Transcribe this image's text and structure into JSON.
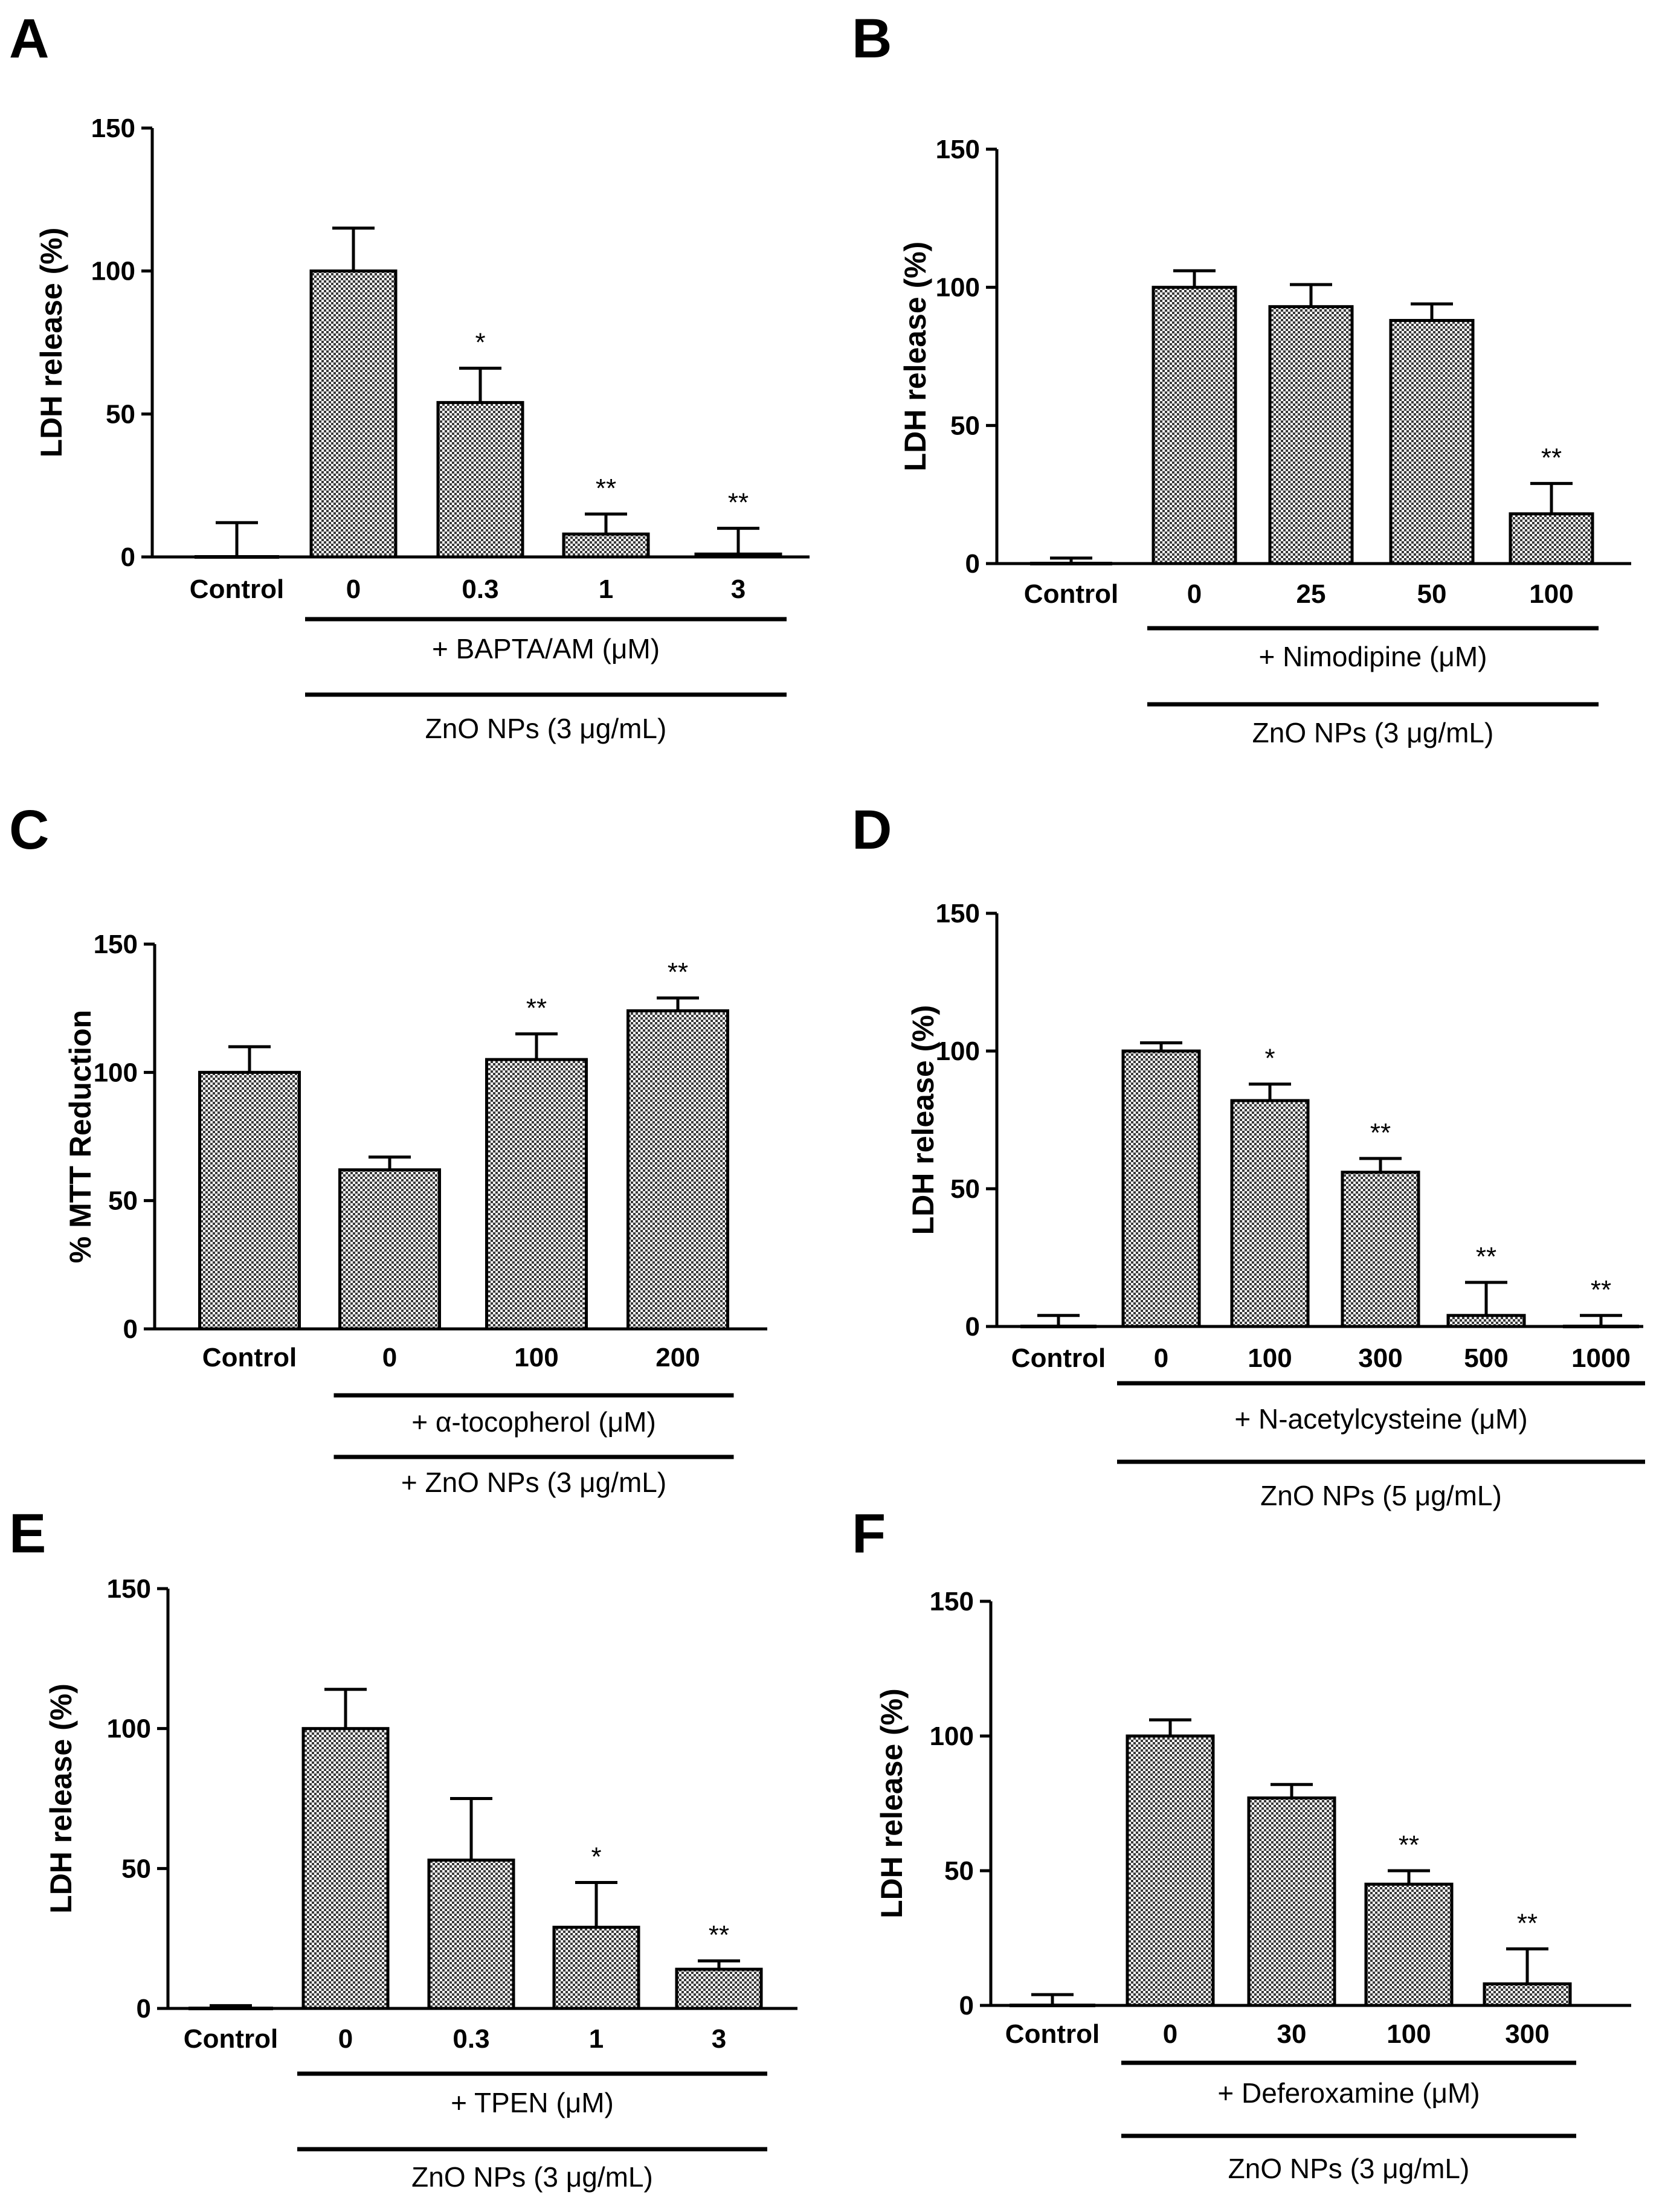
{
  "chart_data": [
    {
      "panel": "A",
      "type": "bar",
      "ylabel": "LDH release (%)",
      "ylim": [
        0,
        150
      ],
      "yticks": [
        0,
        50,
        100,
        150
      ],
      "categories": [
        "Control",
        "0",
        "0.3",
        "1",
        "3"
      ],
      "values": [
        0,
        100,
        54,
        8,
        1
      ],
      "errors": [
        12,
        15,
        12,
        7,
        9
      ],
      "significance": [
        "",
        "",
        "*",
        "**",
        "**"
      ],
      "brackets": [
        {
          "label": "+ BAPTA/AM (μM)",
          "from": 1,
          "to": 4
        },
        {
          "label": "ZnO NPs (3 μg/mL)",
          "from": 1,
          "to": 4
        }
      ]
    },
    {
      "panel": "B",
      "type": "bar",
      "ylabel": "LDH release (%)",
      "ylim": [
        0,
        150
      ],
      "yticks": [
        0,
        50,
        100,
        150
      ],
      "categories": [
        "Control",
        "0",
        "25",
        "50",
        "100"
      ],
      "values": [
        0,
        100,
        93,
        88,
        18
      ],
      "errors": [
        2,
        6,
        8,
        6,
        11
      ],
      "significance": [
        "",
        "",
        "",
        "",
        "**"
      ],
      "brackets": [
        {
          "label": "+ Nimodipine (μM)",
          "from": 1,
          "to": 4
        },
        {
          "label": "ZnO NPs (3 μg/mL)",
          "from": 1,
          "to": 4
        }
      ]
    },
    {
      "panel": "C",
      "type": "bar",
      "ylabel": "% MTT Reduction",
      "ylim": [
        0,
        150
      ],
      "yticks": [
        0,
        50,
        100,
        150
      ],
      "categories": [
        "Control",
        "0",
        "100",
        "200"
      ],
      "values": [
        100,
        62,
        105,
        124
      ],
      "errors": [
        10,
        5,
        10,
        5
      ],
      "significance": [
        "",
        "",
        "**",
        "**"
      ],
      "brackets": [
        {
          "label": "+ α-tocopherol (μM)",
          "from": 1,
          "to": 3
        },
        {
          "label": "+ ZnO NPs (3 μg/mL)",
          "from": 1,
          "to": 3
        }
      ]
    },
    {
      "panel": "D",
      "type": "bar",
      "ylabel": "LDH release (%)",
      "ylim": [
        0,
        150
      ],
      "yticks": [
        0,
        50,
        100,
        150
      ],
      "categories": [
        "Control",
        "0",
        "100",
        "300",
        "500",
        "1000"
      ],
      "values": [
        0,
        100,
        82,
        56,
        4,
        0
      ],
      "errors": [
        4,
        3,
        6,
        5,
        12,
        4
      ],
      "significance": [
        "",
        "",
        "*",
        "**",
        "**",
        "**"
      ],
      "brackets": [
        {
          "label": "+ N-acetylcysteine (μM)",
          "from": 1,
          "to": 5
        },
        {
          "label": "ZnO NPs (5 μg/mL)",
          "from": 1,
          "to": 5
        }
      ]
    },
    {
      "panel": "E",
      "type": "bar",
      "ylabel": "LDH release (%)",
      "ylim": [
        0,
        150
      ],
      "yticks": [
        0,
        50,
        100,
        150
      ],
      "categories": [
        "Control",
        "0",
        "0.3",
        "1",
        "3"
      ],
      "values": [
        0,
        100,
        53,
        29,
        14
      ],
      "errors": [
        1,
        14,
        22,
        16,
        3
      ],
      "significance": [
        "",
        "",
        "",
        "*",
        "**"
      ],
      "brackets": [
        {
          "label": "+ TPEN (μM)",
          "from": 1,
          "to": 4
        },
        {
          "label": "ZnO NPs (3 μg/mL)",
          "from": 1,
          "to": 4
        }
      ]
    },
    {
      "panel": "F",
      "type": "bar",
      "ylabel": "LDH release (%)",
      "ylim": [
        0,
        150
      ],
      "yticks": [
        0,
        50,
        100,
        150
      ],
      "categories": [
        "Control",
        "0",
        "30",
        "100",
        "300"
      ],
      "values": [
        0,
        100,
        77,
        45,
        8
      ],
      "errors": [
        4,
        6,
        5,
        5,
        13
      ],
      "significance": [
        "",
        "",
        "",
        "**",
        "**"
      ],
      "brackets": [
        {
          "label": "+ Deferoxamine (μM)",
          "from": 1,
          "to": 4
        },
        {
          "label": "ZnO NPs (3 μg/mL)",
          "from": 1,
          "to": 4
        }
      ]
    }
  ],
  "colors": {
    "bar_fill": "#b8b8b8",
    "ink": "#000000"
  }
}
